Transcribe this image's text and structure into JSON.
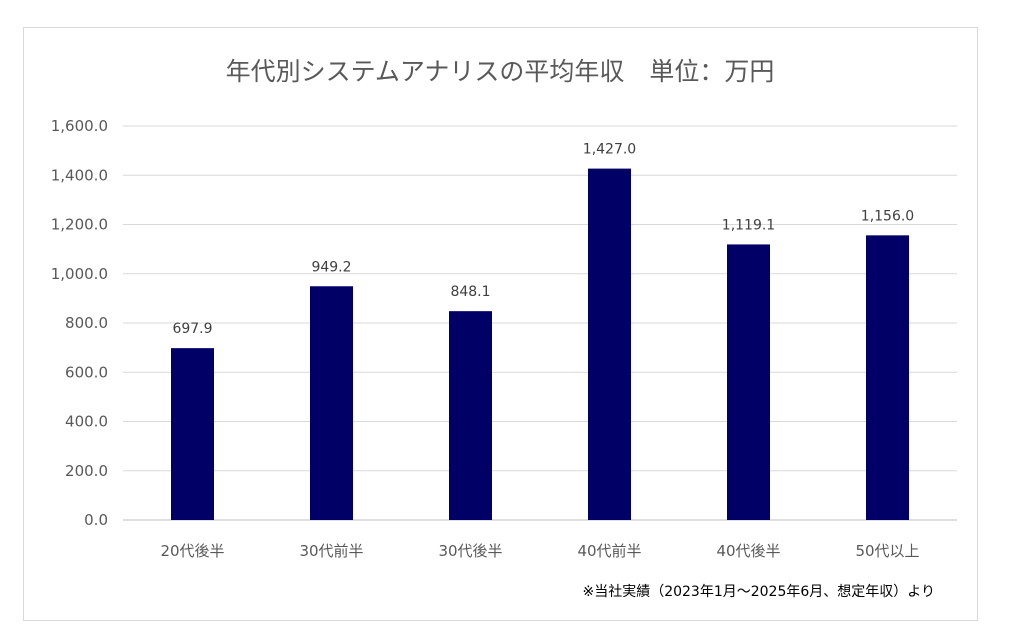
{
  "chart_data": {
    "type": "bar",
    "title": "年代別システムアナリスの平均年収　単位：万円",
    "categories": [
      "20代後半",
      "30代前半",
      "30代後半",
      "40代前半",
      "40代後半",
      "50代以上"
    ],
    "values": [
      697.9,
      949.2,
      848.1,
      1427.0,
      1119.1,
      1156.0
    ],
    "value_labels": [
      "697.9",
      "949.2",
      "848.1",
      "1,427.0",
      "1,119.1",
      "1,156.0"
    ],
    "yticks": [
      0,
      200,
      400,
      600,
      800,
      1000,
      1200,
      1400,
      1600
    ],
    "ytick_labels": [
      "0.0",
      "200.0",
      "400.0",
      "600.0",
      "800.0",
      "1,000.0",
      "1,200.0",
      "1,400.0",
      "1,600.0"
    ],
    "ylim": [
      0,
      1600
    ],
    "xlabel": "",
    "ylabel": "",
    "grid": true,
    "legend": "none",
    "bar_color": "#000066",
    "footnote": "※当社実績（2023年1月～2025年6月、想定年収）より"
  }
}
